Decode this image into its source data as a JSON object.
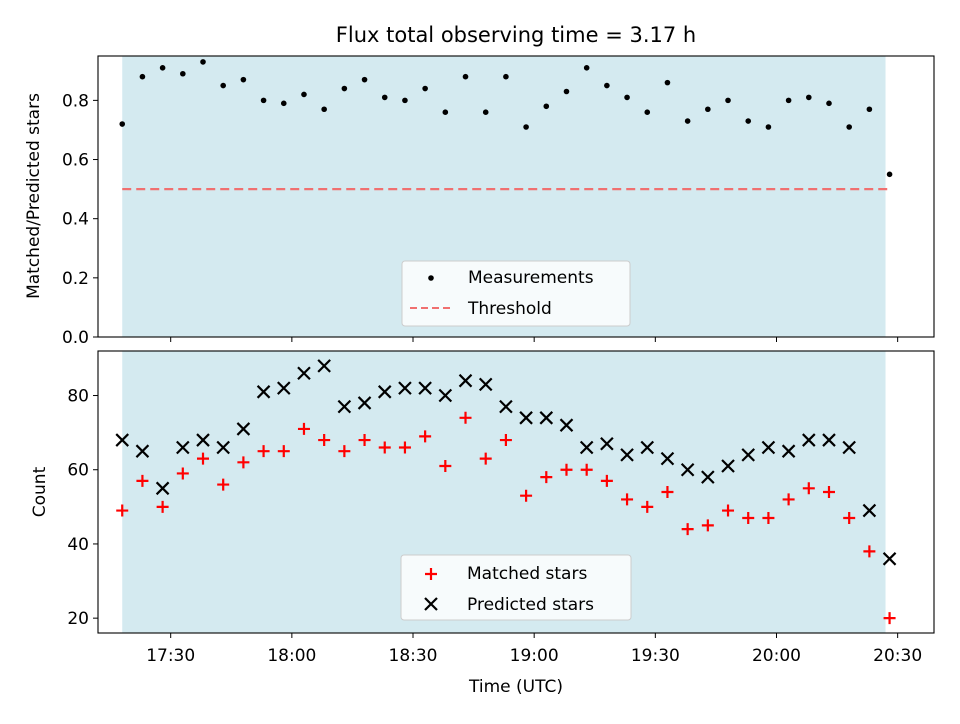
{
  "chart_data": [
    {
      "type": "scatter",
      "title": "Flux total observing time = 3.17 h",
      "xlabel": "",
      "ylabel": "Matched/Predicted stars",
      "xlim": [
        "17:12",
        "20:39"
      ],
      "ylim": [
        0.0,
        0.95
      ],
      "yticks": [
        "0.0",
        "0.2",
        "0.4",
        "0.6",
        "0.8"
      ],
      "shaded_span": [
        "17:18",
        "20:27"
      ],
      "grid": false,
      "legend_position": "lower-center",
      "colors": {
        "measurements": "#000000",
        "threshold": "#f07070",
        "span": "#d4eaf0"
      },
      "series": [
        {
          "name": "Measurements",
          "marker": "dot",
          "x": [
            "17:18",
            "17:23",
            "17:28",
            "17:33",
            "17:38",
            "17:43",
            "17:48",
            "17:53",
            "17:58",
            "18:03",
            "18:08",
            "18:13",
            "18:18",
            "18:23",
            "18:28",
            "18:33",
            "18:38",
            "18:43",
            "18:48",
            "18:53",
            "18:58",
            "19:03",
            "19:08",
            "19:13",
            "19:18",
            "19:23",
            "19:28",
            "19:33",
            "19:38",
            "19:43",
            "19:48",
            "19:53",
            "19:58",
            "20:03",
            "20:08",
            "20:13",
            "20:18",
            "20:23",
            "20:28"
          ],
          "y": [
            0.72,
            0.88,
            0.91,
            0.89,
            0.93,
            0.85,
            0.87,
            0.8,
            0.79,
            0.82,
            0.77,
            0.84,
            0.87,
            0.81,
            0.8,
            0.84,
            0.76,
            0.88,
            0.76,
            0.88,
            0.71,
            0.78,
            0.83,
            0.91,
            0.85,
            0.81,
            0.76,
            0.86,
            0.73,
            0.77,
            0.8,
            0.73,
            0.71,
            0.8,
            0.81,
            0.79,
            0.71,
            0.77,
            0.55
          ]
        },
        {
          "name": "Threshold",
          "style": "dashed",
          "x": [
            "17:18",
            "20:28"
          ],
          "y": [
            0.5,
            0.5
          ]
        }
      ]
    },
    {
      "type": "scatter",
      "title": "",
      "xlabel": "Time (UTC)",
      "ylabel": "Count",
      "xlim": [
        "17:12",
        "20:39"
      ],
      "ylim": [
        16,
        92
      ],
      "yticks": [
        "20",
        "40",
        "60",
        "80"
      ],
      "xticks": [
        "17:30",
        "18:00",
        "18:30",
        "19:00",
        "19:30",
        "20:00",
        "20:30"
      ],
      "shaded_span": [
        "17:18",
        "20:27"
      ],
      "grid": false,
      "legend_position": "lower-center",
      "colors": {
        "matched": "#ff0000",
        "predicted": "#000000",
        "span": "#d4eaf0"
      },
      "series": [
        {
          "name": "Matched stars",
          "marker": "plus",
          "x": [
            "17:18",
            "17:23",
            "17:28",
            "17:33",
            "17:38",
            "17:43",
            "17:48",
            "17:53",
            "17:58",
            "18:03",
            "18:08",
            "18:13",
            "18:18",
            "18:23",
            "18:28",
            "18:33",
            "18:38",
            "18:43",
            "18:48",
            "18:53",
            "18:58",
            "19:03",
            "19:08",
            "19:13",
            "19:18",
            "19:23",
            "19:28",
            "19:33",
            "19:38",
            "19:43",
            "19:48",
            "19:53",
            "19:58",
            "20:03",
            "20:08",
            "20:13",
            "20:18",
            "20:23",
            "20:28"
          ],
          "y": [
            49,
            57,
            50,
            59,
            63,
            56,
            62,
            65,
            65,
            71,
            68,
            65,
            68,
            66,
            66,
            69,
            61,
            74,
            63,
            68,
            53,
            58,
            60,
            60,
            57,
            52,
            50,
            54,
            44,
            45,
            49,
            47,
            47,
            52,
            55,
            54,
            47,
            38,
            20
          ]
        },
        {
          "name": "Predicted stars",
          "marker": "x",
          "x": [
            "17:18",
            "17:23",
            "17:28",
            "17:33",
            "17:38",
            "17:43",
            "17:48",
            "17:53",
            "17:58",
            "18:03",
            "18:08",
            "18:13",
            "18:18",
            "18:23",
            "18:28",
            "18:33",
            "18:38",
            "18:43",
            "18:48",
            "18:53",
            "18:58",
            "19:03",
            "19:08",
            "19:13",
            "19:18",
            "19:23",
            "19:28",
            "19:33",
            "19:38",
            "19:43",
            "19:48",
            "19:53",
            "19:58",
            "20:03",
            "20:08",
            "20:13",
            "20:18",
            "20:23",
            "20:28"
          ],
          "y": [
            68,
            65,
            55,
            66,
            68,
            66,
            71,
            81,
            82,
            86,
            88,
            77,
            78,
            81,
            82,
            82,
            80,
            84,
            83,
            77,
            74,
            74,
            72,
            66,
            67,
            64,
            66,
            63,
            60,
            58,
            61,
            64,
            66,
            65,
            68,
            68,
            66,
            49,
            36
          ]
        }
      ]
    }
  ]
}
